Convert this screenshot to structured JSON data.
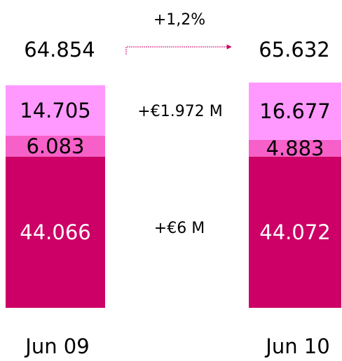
{
  "chart_data": {
    "type": "stacked_bar",
    "categories": [
      "Jun 09",
      "Jun 10"
    ],
    "series": [
      {
        "color": "#cc0066",
        "values": [
          44.066,
          44.072
        ]
      },
      {
        "color": "#f760c8",
        "values": [
          6.083,
          4.883
        ]
      },
      {
        "color": "#ff99ff",
        "values": [
          14.705,
          16.677
        ]
      }
    ],
    "totals": [
      64.854,
      65.632
    ],
    "annotations": {
      "growth": "+1,2%",
      "middle_change": "+€1.972 M",
      "bottom_change": "+€6 M"
    }
  }
}
